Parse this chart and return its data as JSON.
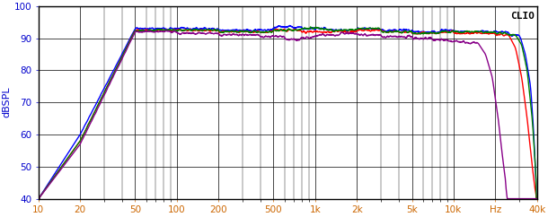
{
  "title": "CLIO",
  "ylabel": "dBSPL",
  "xlabel_ticks": [
    "10",
    "20",
    "50",
    "100",
    "200",
    "500",
    "1k",
    "2k",
    "5k",
    "10k",
    "Hz",
    "40k"
  ],
  "xlabel_tick_vals": [
    10,
    20,
    50,
    100,
    200,
    500,
    1000,
    2000,
    5000,
    10000,
    20000,
    40000
  ],
  "ylim": [
    40,
    100
  ],
  "xlim": [
    10,
    40000
  ],
  "yticks": [
    40,
    50,
    60,
    70,
    80,
    90,
    100
  ],
  "background_color": "#ffffff",
  "grid_color": "#000000",
  "line_colors": [
    "#0000ff",
    "#ff0000",
    "#008000",
    "#880088"
  ],
  "line_width": 1.0
}
